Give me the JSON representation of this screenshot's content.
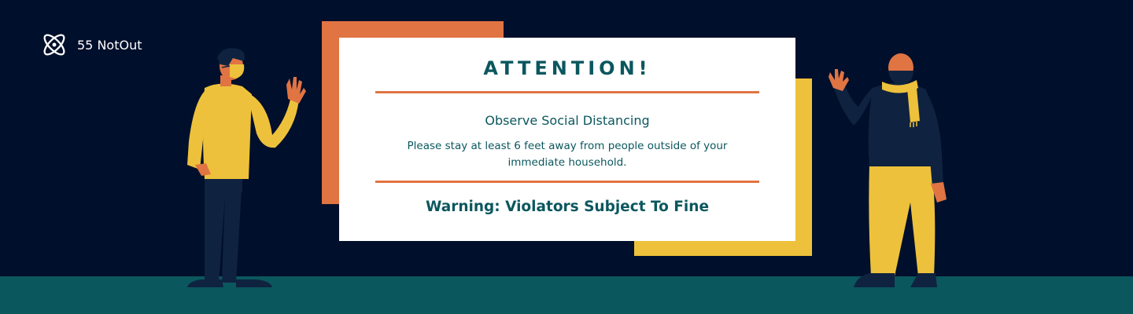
{
  "brand": {
    "name": "55 NotOut",
    "logo_icon": "atom-icon"
  },
  "notice": {
    "title": "ATTENTION!",
    "subtitle": "Observe Social Distancing",
    "body": "Please stay at least 6 feet away from people outside of your immediate household.",
    "warning": "Warning: Violators Subject To Fine"
  },
  "colors": {
    "background": "#000f2b",
    "floor": "#0b575e",
    "accent_orange": "#e07443",
    "accent_yellow": "#edc13b",
    "text_teal": "#0b575e"
  },
  "illustrations": [
    {
      "name": "man-waving-yellow-shirt",
      "icon": "person-wearing-mask-illustration"
    },
    {
      "name": "man-waving-yellow-scarf",
      "icon": "person-wearing-mask-illustration"
    }
  ]
}
